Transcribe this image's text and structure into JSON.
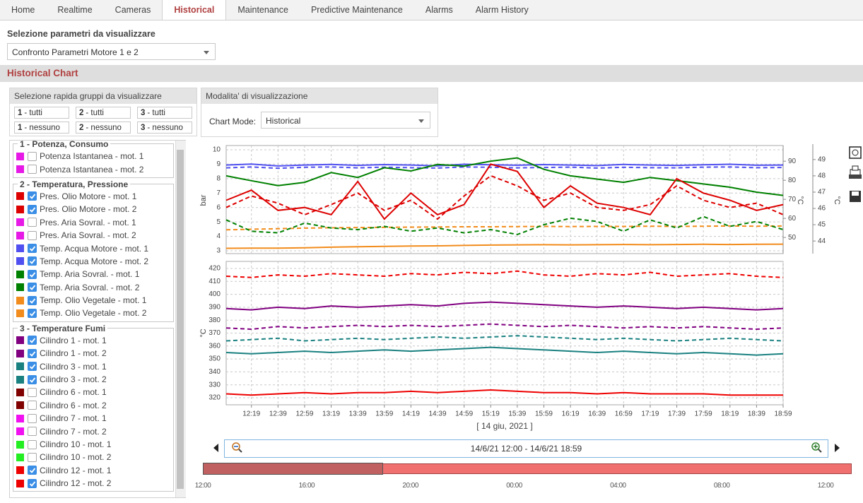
{
  "tabs": [
    "Home",
    "Realtime",
    "Cameras",
    "Historical",
    "Maintenance",
    "Predictive Maintenance",
    "Alarms",
    "Alarm History"
  ],
  "active_tab": 3,
  "parameter_select": {
    "label": "Selezione parametri da visualizzare",
    "value": "Confronto Parametri Motore 1 e 2"
  },
  "section_title": "Historical Chart",
  "quick_select": {
    "title": "Selezione rapida gruppi da visualizzare",
    "buttons": [
      {
        "group": "1",
        "text": "- tutti"
      },
      {
        "group": "2",
        "text": "- tutti"
      },
      {
        "group": "3",
        "text": "- tutti"
      },
      {
        "group": "1",
        "text": "- nessuno"
      },
      {
        "group": "2",
        "text": "- nessuno"
      },
      {
        "group": "3",
        "text": "- nessuno"
      }
    ]
  },
  "display_mode": {
    "title": "Modalita' di visualizzazione",
    "label": "Chart Mode:",
    "value": "Historical"
  },
  "groups": [
    {
      "title": "1 - Potenza, Consumo",
      "items": [
        {
          "label": "Potenza Istantanea - mot. 1",
          "color": "#e619e6",
          "checked": false
        },
        {
          "label": "Potenza Istantanea - mot. 2",
          "color": "#e619e6",
          "checked": false
        }
      ]
    },
    {
      "title": "2 - Temperatura, Pressione",
      "items": [
        {
          "label": "Pres. Olio Motore - mot. 1",
          "color": "#dd0000",
          "checked": true
        },
        {
          "label": "Pres. Olio Motore - mot. 2",
          "color": "#dd0000",
          "checked": true
        },
        {
          "label": "Pres. Aria Sovral. - mot. 1",
          "color": "#e619e6",
          "checked": false
        },
        {
          "label": "Pres. Aria Sovral. - mot. 2",
          "color": "#e619e6",
          "checked": false
        },
        {
          "label": "Temp. Acqua Motore - mot. 1",
          "color": "#5050f0",
          "checked": true
        },
        {
          "label": "Temp. Acqua Motore - mot. 2",
          "color": "#5050f0",
          "checked": true
        },
        {
          "label": "Temp. Aria Sovral. - mot. 1",
          "color": "#008000",
          "checked": true
        },
        {
          "label": "Temp. Aria Sovral. - mot. 2",
          "color": "#008000",
          "checked": true
        },
        {
          "label": "Temp. Olio Vegetale - mot. 1",
          "color": "#f28c1c",
          "checked": true
        },
        {
          "label": "Temp. Olio Vegetale - mot. 2",
          "color": "#f28c1c",
          "checked": true
        }
      ]
    },
    {
      "title": "3 - Temperature Fumi",
      "items": [
        {
          "label": "Cilindro 1 - mot. 1",
          "color": "#800080",
          "checked": true
        },
        {
          "label": "Cilindro 1 - mot. 2",
          "color": "#800080",
          "checked": true
        },
        {
          "label": "Cilindro 3 - mot. 1",
          "color": "#1a8080",
          "checked": true
        },
        {
          "label": "Cilindro 3 - mot. 2",
          "color": "#1a8080",
          "checked": true
        },
        {
          "label": "Cilindro 6 - mot. 1",
          "color": "#800000",
          "checked": false
        },
        {
          "label": "Cilindro 6 - mot. 2",
          "color": "#800000",
          "checked": false
        },
        {
          "label": "Cilindro 7 - mot. 1",
          "color": "#f010f0",
          "checked": false
        },
        {
          "label": "Cilindro 7 - mot. 2",
          "color": "#f010f0",
          "checked": false
        },
        {
          "label": "Cilindro 10 - mot. 1",
          "color": "#22ee22",
          "checked": false
        },
        {
          "label": "Cilindro 10 - mot. 2",
          "color": "#22ee22",
          "checked": false
        },
        {
          "label": "Cilindro 12 - mot. 1",
          "color": "#ee0000",
          "checked": true
        },
        {
          "label": "Cilindro 12 - mot. 2",
          "color": "#ee0000",
          "checked": true
        }
      ]
    }
  ],
  "chart_data": [
    {
      "type": "line",
      "ylabel": "bar",
      "ylim": [
        3,
        10
      ],
      "yticks": [
        3,
        4,
        5,
        6,
        7,
        8,
        9,
        10
      ],
      "y2label": "°C",
      "y2lim": [
        43,
        96
      ],
      "y2ticks": [
        50,
        60,
        70,
        80,
        90
      ],
      "y3label": "°C",
      "y3lim": [
        43.4,
        49.6
      ],
      "y3ticks": [
        44,
        45,
        46,
        47,
        48,
        49
      ],
      "xlim": [
        "12:00",
        "18:59"
      ],
      "xticks": [
        "12:19",
        "12:39",
        "12:59",
        "13:19",
        "13:39",
        "13:59",
        "14:19",
        "14:39",
        "14:59",
        "15:19",
        "15:39",
        "15:59",
        "16:19",
        "16:39",
        "16:59",
        "17:19",
        "17:39",
        "17:59",
        "18:19",
        "18:39",
        "18:59"
      ],
      "x": [
        "12:00",
        "12:19",
        "12:39",
        "12:59",
        "13:19",
        "13:39",
        "13:59",
        "14:19",
        "14:39",
        "14:59",
        "15:19",
        "15:39",
        "15:59",
        "16:19",
        "16:39",
        "16:59",
        "17:19",
        "17:39",
        "17:59",
        "18:19",
        "18:39",
        "18:59"
      ],
      "grid": true,
      "series": [
        {
          "color": "#5050f0",
          "style": "solid",
          "axis": "y2",
          "values": [
            88,
            88.5,
            87.5,
            88,
            88.3,
            87.8,
            88.2,
            88,
            87.6,
            88.4,
            88.1,
            87.9,
            88.2,
            88,
            87.7,
            88.3,
            88,
            87.8,
            88.1,
            88.4,
            87.9,
            88
          ]
        },
        {
          "color": "#5050f0",
          "style": "dashed",
          "axis": "y2",
          "values": [
            86.5,
            87,
            86.3,
            86.8,
            87,
            86.5,
            86.9,
            86.6,
            86.4,
            87,
            86.8,
            86.5,
            86.7,
            86.9,
            86.4,
            86.8,
            86.6,
            86.5,
            86.9,
            87,
            86.6,
            86.7
          ]
        },
        {
          "color": "#f28c1c",
          "style": "solid",
          "axis": "y2",
          "values": [
            44.3,
            44.4,
            44.4,
            44.6,
            44.9,
            45.1,
            45.3,
            45.5,
            45.6,
            45.8,
            46,
            46.1,
            46.2,
            46.1,
            46.2,
            46.3,
            46.2,
            46.3,
            46.4,
            46.3,
            46.4,
            46.5
          ]
        },
        {
          "color": "#f28c1c",
          "style": "dashed",
          "axis": "y2",
          "values": [
            54,
            54.3,
            54.6,
            54.9,
            55.1,
            55.2,
            55.3,
            55.4,
            55.5,
            55.6,
            55.6,
            55.7,
            55.8,
            55.7,
            55.8,
            55.8,
            55.9,
            55.8,
            55.9,
            56,
            55.9,
            56
          ]
        },
        {
          "color": "#008000",
          "style": "solid",
          "axis": "y3",
          "values": [
            48,
            47.7,
            47.4,
            47.6,
            48.2,
            47.9,
            48.5,
            48.3,
            48.7,
            48.6,
            48.9,
            49.1,
            48.4,
            48,
            47.8,
            47.6,
            47.9,
            47.7,
            47.5,
            47.3,
            47,
            46.8
          ]
        },
        {
          "color": "#008000",
          "style": "dashed",
          "axis": "y3",
          "values": [
            45.3,
            44.6,
            44.5,
            45.1,
            44.8,
            44.7,
            44.9,
            44.6,
            44.8,
            44.5,
            44.7,
            44.4,
            45,
            45.4,
            45.2,
            44.6,
            45.3,
            44.8,
            45.5,
            44.9,
            45.2,
            44.7
          ]
        },
        {
          "color": "#dd0000",
          "style": "dashed",
          "axis": "y",
          "values": [
            6,
            6.8,
            6.3,
            5.5,
            6.2,
            7,
            5.8,
            6.5,
            5.2,
            6.8,
            8.2,
            7.5,
            6.5,
            7,
            6,
            5.8,
            6.2,
            7.5,
            6.5,
            6,
            6.3,
            5.5
          ]
        },
        {
          "color": "#dd0000",
          "style": "solid",
          "axis": "y",
          "values": [
            6.5,
            7.2,
            5.8,
            6,
            5.5,
            7.8,
            5.2,
            7,
            5.5,
            6.2,
            9,
            8.5,
            6,
            7.5,
            6.3,
            6,
            5.5,
            8,
            7,
            6.5,
            5.8,
            6.2
          ]
        }
      ]
    },
    {
      "type": "line",
      "ylabel": "°C",
      "ylim": [
        317,
        423
      ],
      "yticks": [
        320,
        330,
        340,
        350,
        360,
        370,
        380,
        390,
        400,
        410,
        420
      ],
      "xlabel": "[ 14 giu, 2021 ]",
      "xlim": [
        "12:00",
        "18:59"
      ],
      "xticks": [
        "12:19",
        "12:39",
        "12:59",
        "13:19",
        "13:39",
        "13:59",
        "14:19",
        "14:39",
        "14:59",
        "15:19",
        "15:39",
        "15:59",
        "16:19",
        "16:39",
        "16:59",
        "17:19",
        "17:39",
        "17:59",
        "18:19",
        "18:39",
        "18:59"
      ],
      "x": [
        "12:00",
        "12:19",
        "12:39",
        "12:59",
        "13:19",
        "13:39",
        "13:59",
        "14:19",
        "14:39",
        "14:59",
        "15:19",
        "15:39",
        "15:59",
        "16:19",
        "16:39",
        "16:59",
        "17:19",
        "17:39",
        "17:59",
        "18:19",
        "18:39",
        "18:59"
      ],
      "grid": true,
      "series": [
        {
          "color": "#800080",
          "style": "solid",
          "axis": "y",
          "values": [
            389,
            388,
            390,
            389,
            391,
            390,
            391,
            392,
            391,
            393,
            394,
            393,
            392,
            391,
            390,
            391,
            390,
            389,
            390,
            389,
            388,
            389
          ]
        },
        {
          "color": "#800080",
          "style": "dashed",
          "axis": "y",
          "values": [
            374,
            373,
            375,
            374,
            375,
            376,
            375,
            376,
            375,
            376,
            377,
            376,
            375,
            376,
            375,
            374,
            375,
            374,
            375,
            374,
            373,
            374
          ]
        },
        {
          "color": "#1a8080",
          "style": "solid",
          "axis": "y",
          "values": [
            355,
            354,
            355,
            356,
            355,
            356,
            357,
            356,
            357,
            358,
            359,
            358,
            357,
            356,
            355,
            356,
            355,
            354,
            355,
            354,
            353,
            354
          ]
        },
        {
          "color": "#1a8080",
          "style": "dashed",
          "axis": "y",
          "values": [
            364,
            365,
            366,
            364,
            365,
            366,
            365,
            366,
            367,
            366,
            367,
            368,
            367,
            366,
            365,
            366,
            365,
            364,
            365,
            366,
            365,
            364
          ]
        },
        {
          "color": "#ee0000",
          "style": "solid",
          "axis": "y",
          "values": [
            323,
            322,
            323,
            324,
            323,
            324,
            324,
            325,
            324,
            325,
            326,
            325,
            324,
            324,
            323,
            324,
            323,
            323,
            323,
            322,
            322,
            322
          ]
        },
        {
          "color": "#ee0000",
          "style": "dashed",
          "axis": "y",
          "values": [
            414,
            413,
            415,
            414,
            416,
            415,
            414,
            416,
            415,
            417,
            416,
            418,
            415,
            414,
            416,
            415,
            417,
            414,
            415,
            416,
            414,
            413
          ]
        }
      ]
    }
  ],
  "navigator": {
    "range": "14/6/21 12:00 - 14/6/21 18:59",
    "ticks": [
      "12:00",
      "16:00",
      "20:00",
      "00:00",
      "04:00",
      "08:00",
      "12:00"
    ]
  }
}
